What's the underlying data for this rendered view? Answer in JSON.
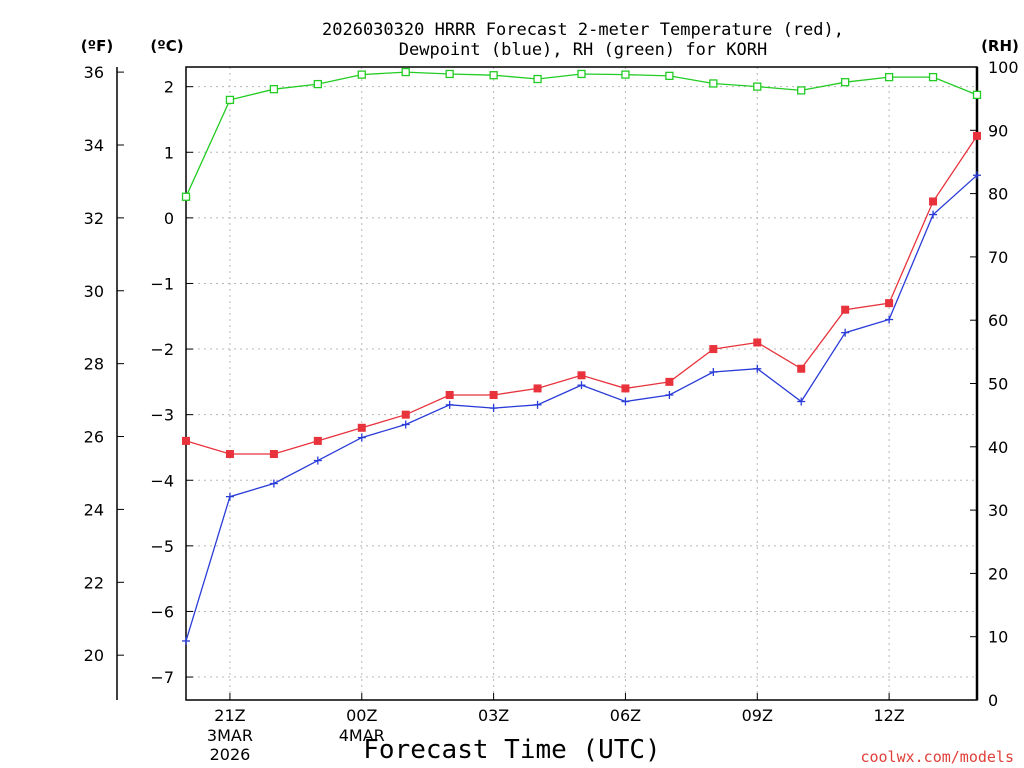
{
  "chart_data": {
    "type": "line",
    "title_lines": [
      "2026030320 HRRR Forecast 2-meter Temperature (red),",
      "Dewpoint (blue), RH (green) for KORH"
    ],
    "xlabel": "Forecast Time (UTC)",
    "credit": "coolwx.com/models",
    "units": {
      "fahrenheit": "(ºF)",
      "celsius": "(ºC)",
      "rh": "(RH)"
    },
    "x_hours": [
      0,
      1,
      2,
      3,
      4,
      5,
      6,
      7,
      8,
      9,
      10,
      11,
      12,
      13,
      14,
      15,
      16,
      17,
      18
    ],
    "x_ticks": [
      {
        "hour": 1,
        "label": "21Z",
        "sub": [
          "3MAR",
          "2026"
        ]
      },
      {
        "hour": 4,
        "label": "00Z",
        "sub": [
          "4MAR"
        ]
      },
      {
        "hour": 7,
        "label": "03Z",
        "sub": []
      },
      {
        "hour": 10,
        "label": "06Z",
        "sub": []
      },
      {
        "hour": 13,
        "label": "09Z",
        "sub": []
      },
      {
        "hour": 16,
        "label": "12Z",
        "sub": []
      }
    ],
    "xlim": [
      0,
      18
    ],
    "celsius_axis": {
      "ylim": [
        -7.35,
        2.3
      ],
      "ticks": [
        2,
        1,
        0,
        -1,
        -2,
        -3,
        -4,
        -5,
        -6,
        -7
      ],
      "tick_labels": [
        "2",
        "1",
        "0",
        "−1",
        "−2",
        "−3",
        "−4",
        "−5",
        "−6",
        "−7"
      ]
    },
    "fahrenheit_axis": {
      "ticks": [
        36,
        34,
        32,
        30,
        28,
        26,
        24,
        22,
        20
      ]
    },
    "rh_axis": {
      "ylim": [
        0,
        100
      ],
      "ticks": [
        0,
        10,
        20,
        30,
        40,
        50,
        60,
        70,
        80,
        90,
        100
      ]
    },
    "series": [
      {
        "name": "Temperature",
        "axis": "celsius",
        "color": "#e8323c",
        "marker": "filled-square",
        "values": [
          -3.4,
          -3.6,
          -3.6,
          -3.4,
          -3.2,
          -3.0,
          -2.7,
          -2.7,
          -2.6,
          -2.4,
          -2.6,
          -2.5,
          -2.0,
          -1.9,
          -2.3,
          -1.4,
          -1.3,
          0.25,
          1.25
        ]
      },
      {
        "name": "Dewpoint",
        "axis": "celsius",
        "color": "#2a3cd8",
        "marker": "plus",
        "values": [
          -6.45,
          -4.25,
          -4.05,
          -3.7,
          -3.35,
          -3.15,
          -2.85,
          -2.9,
          -2.85,
          -2.55,
          -2.8,
          -2.7,
          -2.35,
          -2.3,
          -2.8,
          -1.75,
          -1.55,
          0.05,
          0.65
        ]
      },
      {
        "name": "RH",
        "axis": "rh",
        "color": "#22cc22",
        "marker": "open-square",
        "values": [
          79.5,
          94.8,
          96.5,
          97.3,
          98.8,
          99.2,
          98.9,
          98.7,
          98.1,
          98.9,
          98.8,
          98.6,
          97.4,
          96.9,
          96.3,
          97.6,
          98.4,
          98.4,
          95.6
        ]
      }
    ]
  }
}
